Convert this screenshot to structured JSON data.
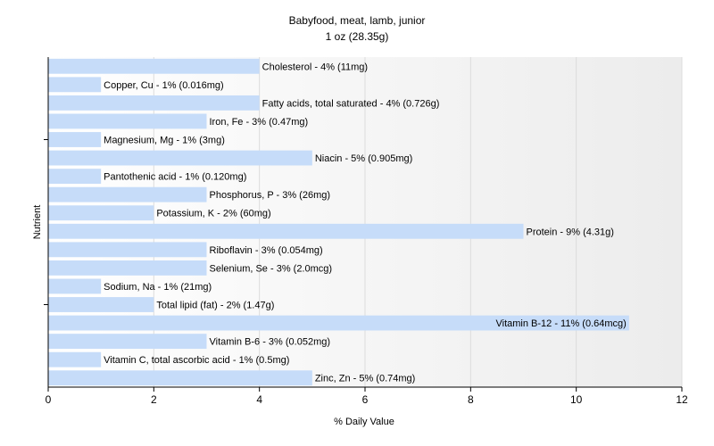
{
  "chart_data": {
    "type": "bar",
    "orientation": "horizontal",
    "title": "Babyfood, meat, lamb, junior",
    "subtitle": "1 oz (28.35g)",
    "xlabel": "% Daily Value",
    "ylabel": "Nutrient",
    "xlim": [
      0,
      12
    ],
    "xticks": [
      0,
      2,
      4,
      6,
      8,
      10,
      12
    ],
    "grid": true,
    "legend": "none",
    "bar_color": "#c6dcf9",
    "categories": [
      "Cholesterol",
      "Copper, Cu",
      "Fatty acids, total saturated",
      "Iron, Fe",
      "Magnesium, Mg",
      "Niacin",
      "Pantothenic acid",
      "Phosphorus, P",
      "Potassium, K",
      "Protein",
      "Riboflavin",
      "Selenium, Se",
      "Sodium, Na",
      "Total lipid (fat)",
      "Vitamin B-12",
      "Vitamin B-6",
      "Vitamin C, total ascorbic acid",
      "Zinc, Zn"
    ],
    "values": [
      4,
      1,
      4,
      3,
      1,
      5,
      1,
      3,
      2,
      9,
      3,
      3,
      1,
      2,
      11,
      3,
      1,
      5
    ],
    "labels": [
      "Cholesterol - 4% (11mg)",
      "Copper, Cu - 1% (0.016mg)",
      "Fatty acids, total saturated - 4% (0.726g)",
      "Iron, Fe - 3% (0.47mg)",
      "Magnesium, Mg - 1% (3mg)",
      "Niacin - 5% (0.905mg)",
      "Pantothenic acid - 1% (0.120mg)",
      "Phosphorus, P - 3% (26mg)",
      "Potassium, K - 2% (60mg)",
      "Protein - 9% (4.31g)",
      "Riboflavin - 3% (0.054mg)",
      "Selenium, Se - 3% (2.0mcg)",
      "Sodium, Na - 1% (21mg)",
      "Total lipid (fat) - 2% (1.47g)",
      "Vitamin B-12 - 11% (0.64mcg)",
      "Vitamin B-6 - 3% (0.052mg)",
      "Vitamin C, total ascorbic acid - 1% (0.5mg)",
      "Zinc, Zn - 5% (0.74mg)"
    ]
  }
}
